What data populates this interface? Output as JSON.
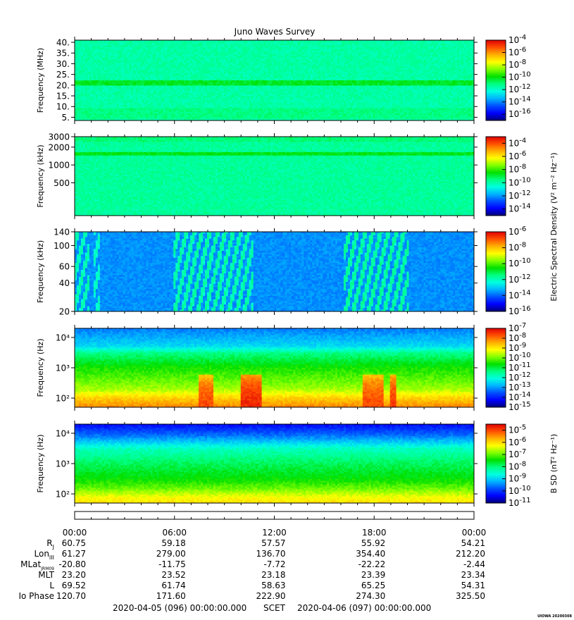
{
  "title": "Juno Waves Survey",
  "credit": "UIOWA 20200308",
  "colors": {
    "stops": [
      "#00007a",
      "#0000ff",
      "#0050ff",
      "#00b4ff",
      "#00ffe0",
      "#00ff80",
      "#00e000",
      "#80ff00",
      "#ffff00",
      "#ffb000",
      "#ff5000",
      "#e00000"
    ]
  },
  "chart_data": [
    {
      "type": "heatmap",
      "name": "wfr-high",
      "ylabel": "Frequency (MHz)",
      "yscale": "linear",
      "ylim": [
        3.5,
        41
      ],
      "yticks": [
        {
          "v": 5,
          "label": "5."
        },
        {
          "v": 10,
          "label": "10."
        },
        {
          "v": 15,
          "label": "15."
        },
        {
          "v": 20,
          "label": "20."
        },
        {
          "v": 25,
          "label": "25."
        },
        {
          "v": 30,
          "label": "30."
        },
        {
          "v": 35,
          "label": "35."
        },
        {
          "v": 40,
          "label": "40."
        }
      ],
      "background_level": 0.42,
      "bands": [
        {
          "y0": 20.2,
          "y1": 22.2,
          "level": 0.52
        },
        {
          "y0": 4.0,
          "y1": 9.0,
          "level": 0.45
        }
      ],
      "colorbar": {
        "min_exp": -17,
        "max_exp": -4,
        "tick_exps": [
          -4,
          -6,
          -8,
          -10,
          -12,
          -14,
          -16
        ],
        "label": ""
      }
    },
    {
      "type": "heatmap",
      "name": "hfr",
      "ylabel": "Frequency (kHz)",
      "yscale": "log",
      "ylim": [
        140,
        3000
      ],
      "yticks": [
        {
          "v": 500,
          "label": "500"
        },
        {
          "v": 1000,
          "label": "1000"
        },
        {
          "v": 2000,
          "label": "2000"
        },
        {
          "v": 3000,
          "label": "3000"
        }
      ],
      "background_level": 0.43,
      "bands": [
        {
          "y0": 1400,
          "y1": 1650,
          "level": 0.53
        },
        {
          "y0": 2500,
          "y1": 3000,
          "level": 0.46
        }
      ],
      "colorbar": {
        "min_exp": -15,
        "max_exp": -3,
        "tick_exps": [
          -4,
          -6,
          -8,
          -10,
          -12,
          -14
        ],
        "label": "Electric Spectral Density (V² m⁻² Hz⁻¹)"
      }
    },
    {
      "type": "heatmap",
      "name": "lfr",
      "ylabel": "Frequency (kHz)",
      "yscale": "log",
      "ylim": [
        20,
        140
      ],
      "yticks": [
        {
          "v": 20,
          "label": "20"
        },
        {
          "v": 40,
          "label": "40"
        },
        {
          "v": 60,
          "label": "60"
        },
        {
          "v": 100,
          "label": "100"
        },
        {
          "v": 140,
          "label": "140"
        }
      ],
      "background_level": 0.24,
      "bursts": [
        {
          "t0": 0.0,
          "t1": 0.9,
          "level": 0.42
        },
        {
          "t0": 1.2,
          "t1": 1.5,
          "level": 0.4
        },
        {
          "t0": 6.0,
          "t1": 10.7,
          "level": 0.43
        },
        {
          "t0": 16.2,
          "t1": 20.1,
          "level": 0.44
        }
      ],
      "colorbar": {
        "min_exp": -16,
        "max_exp": -6,
        "tick_exps": [
          -6,
          -8,
          -10,
          -12,
          -14,
          -16
        ],
        "label": ""
      }
    },
    {
      "type": "heatmap",
      "name": "electric-low",
      "ylabel": "Frequency (Hz)",
      "yscale": "log",
      "ylim": [
        50,
        20000
      ],
      "yticks": [
        {
          "v": 100,
          "label": "10²"
        },
        {
          "v": 1000,
          "label": "10³"
        },
        {
          "v": 10000,
          "label": "10⁴"
        }
      ],
      "vertical_profile": [
        {
          "f": 50,
          "level": 0.86
        },
        {
          "f": 100,
          "level": 0.78
        },
        {
          "f": 200,
          "level": 0.66
        },
        {
          "f": 500,
          "level": 0.6
        },
        {
          "f": 1000,
          "level": 0.56
        },
        {
          "f": 3000,
          "level": 0.45
        },
        {
          "f": 5000,
          "level": 0.32
        },
        {
          "f": 20000,
          "level": 0.22
        }
      ],
      "hot_spots": [
        {
          "t0": 7.5,
          "t1": 8.3,
          "level": 0.93
        },
        {
          "t0": 10.0,
          "t1": 11.2,
          "level": 0.97
        },
        {
          "t0": 17.3,
          "t1": 18.6,
          "level": 0.93
        },
        {
          "t0": 18.9,
          "t1": 19.3,
          "level": 0.95
        }
      ],
      "colorbar": {
        "min_exp": -15,
        "max_exp": -7,
        "tick_exps": [
          -7,
          -8,
          -9,
          -10,
          -11,
          -12,
          -13,
          -14,
          -15
        ],
        "label": ""
      }
    },
    {
      "type": "heatmap",
      "name": "magnetic-low",
      "ylabel": "Frequency (Hz)",
      "yscale": "log",
      "ylim": [
        50,
        20000
      ],
      "yticks": [
        {
          "v": 100,
          "label": "10²"
        },
        {
          "v": 1000,
          "label": "10³"
        },
        {
          "v": 10000,
          "label": "10⁴"
        }
      ],
      "vertical_profile": [
        {
          "f": 50,
          "level": 0.76
        },
        {
          "f": 80,
          "level": 0.72
        },
        {
          "f": 150,
          "level": 0.62
        },
        {
          "f": 300,
          "level": 0.55
        },
        {
          "f": 1000,
          "level": 0.48
        },
        {
          "f": 3000,
          "level": 0.4
        },
        {
          "f": 8000,
          "level": 0.22
        },
        {
          "f": 20000,
          "level": 0.1
        }
      ],
      "colorbar": {
        "min_exp": -11,
        "max_exp": -4.5,
        "tick_exps": [
          -5,
          -6,
          -7,
          -8,
          -9,
          -10,
          -11
        ],
        "label": "B SD (nT² Hz⁻¹)"
      }
    }
  ],
  "time_axis": {
    "tick_labels": [
      "00:00",
      "06:00",
      "12:00",
      "18:00",
      "00:00"
    ],
    "hours": [
      0,
      6,
      12,
      18,
      24
    ]
  },
  "ephemeris": [
    {
      "label": "R",
      "sub": "J",
      "values": [
        "60.75",
        "59.18",
        "57.57",
        "55.92",
        "54.21"
      ]
    },
    {
      "label": "Lon",
      "sub": "III",
      "values": [
        "61.27",
        "279.00",
        "136.70",
        "354.40",
        "212.20"
      ]
    },
    {
      "label": "MLat",
      "sub": "JRM09",
      "values": [
        "-20.80",
        "-11.75",
        "-7.72",
        "-22.22",
        "-2.44"
      ]
    },
    {
      "label": "MLT",
      "sub": "",
      "values": [
        "23.20",
        "23.52",
        "23.18",
        "23.39",
        "23.34"
      ]
    },
    {
      "label": "L",
      "sub": "",
      "values": [
        "69.52",
        "61.74",
        "58.63",
        "65.25",
        "54.31"
      ]
    },
    {
      "label": "Io Phase",
      "sub": "",
      "values": [
        "120.70",
        "171.60",
        "222.90",
        "274.30",
        "325.50"
      ]
    }
  ],
  "footer": {
    "start": "2020-04-05 (096) 00:00:00.000",
    "frame": "SCET",
    "end": "2020-04-06 (097) 00:00:00.000"
  }
}
